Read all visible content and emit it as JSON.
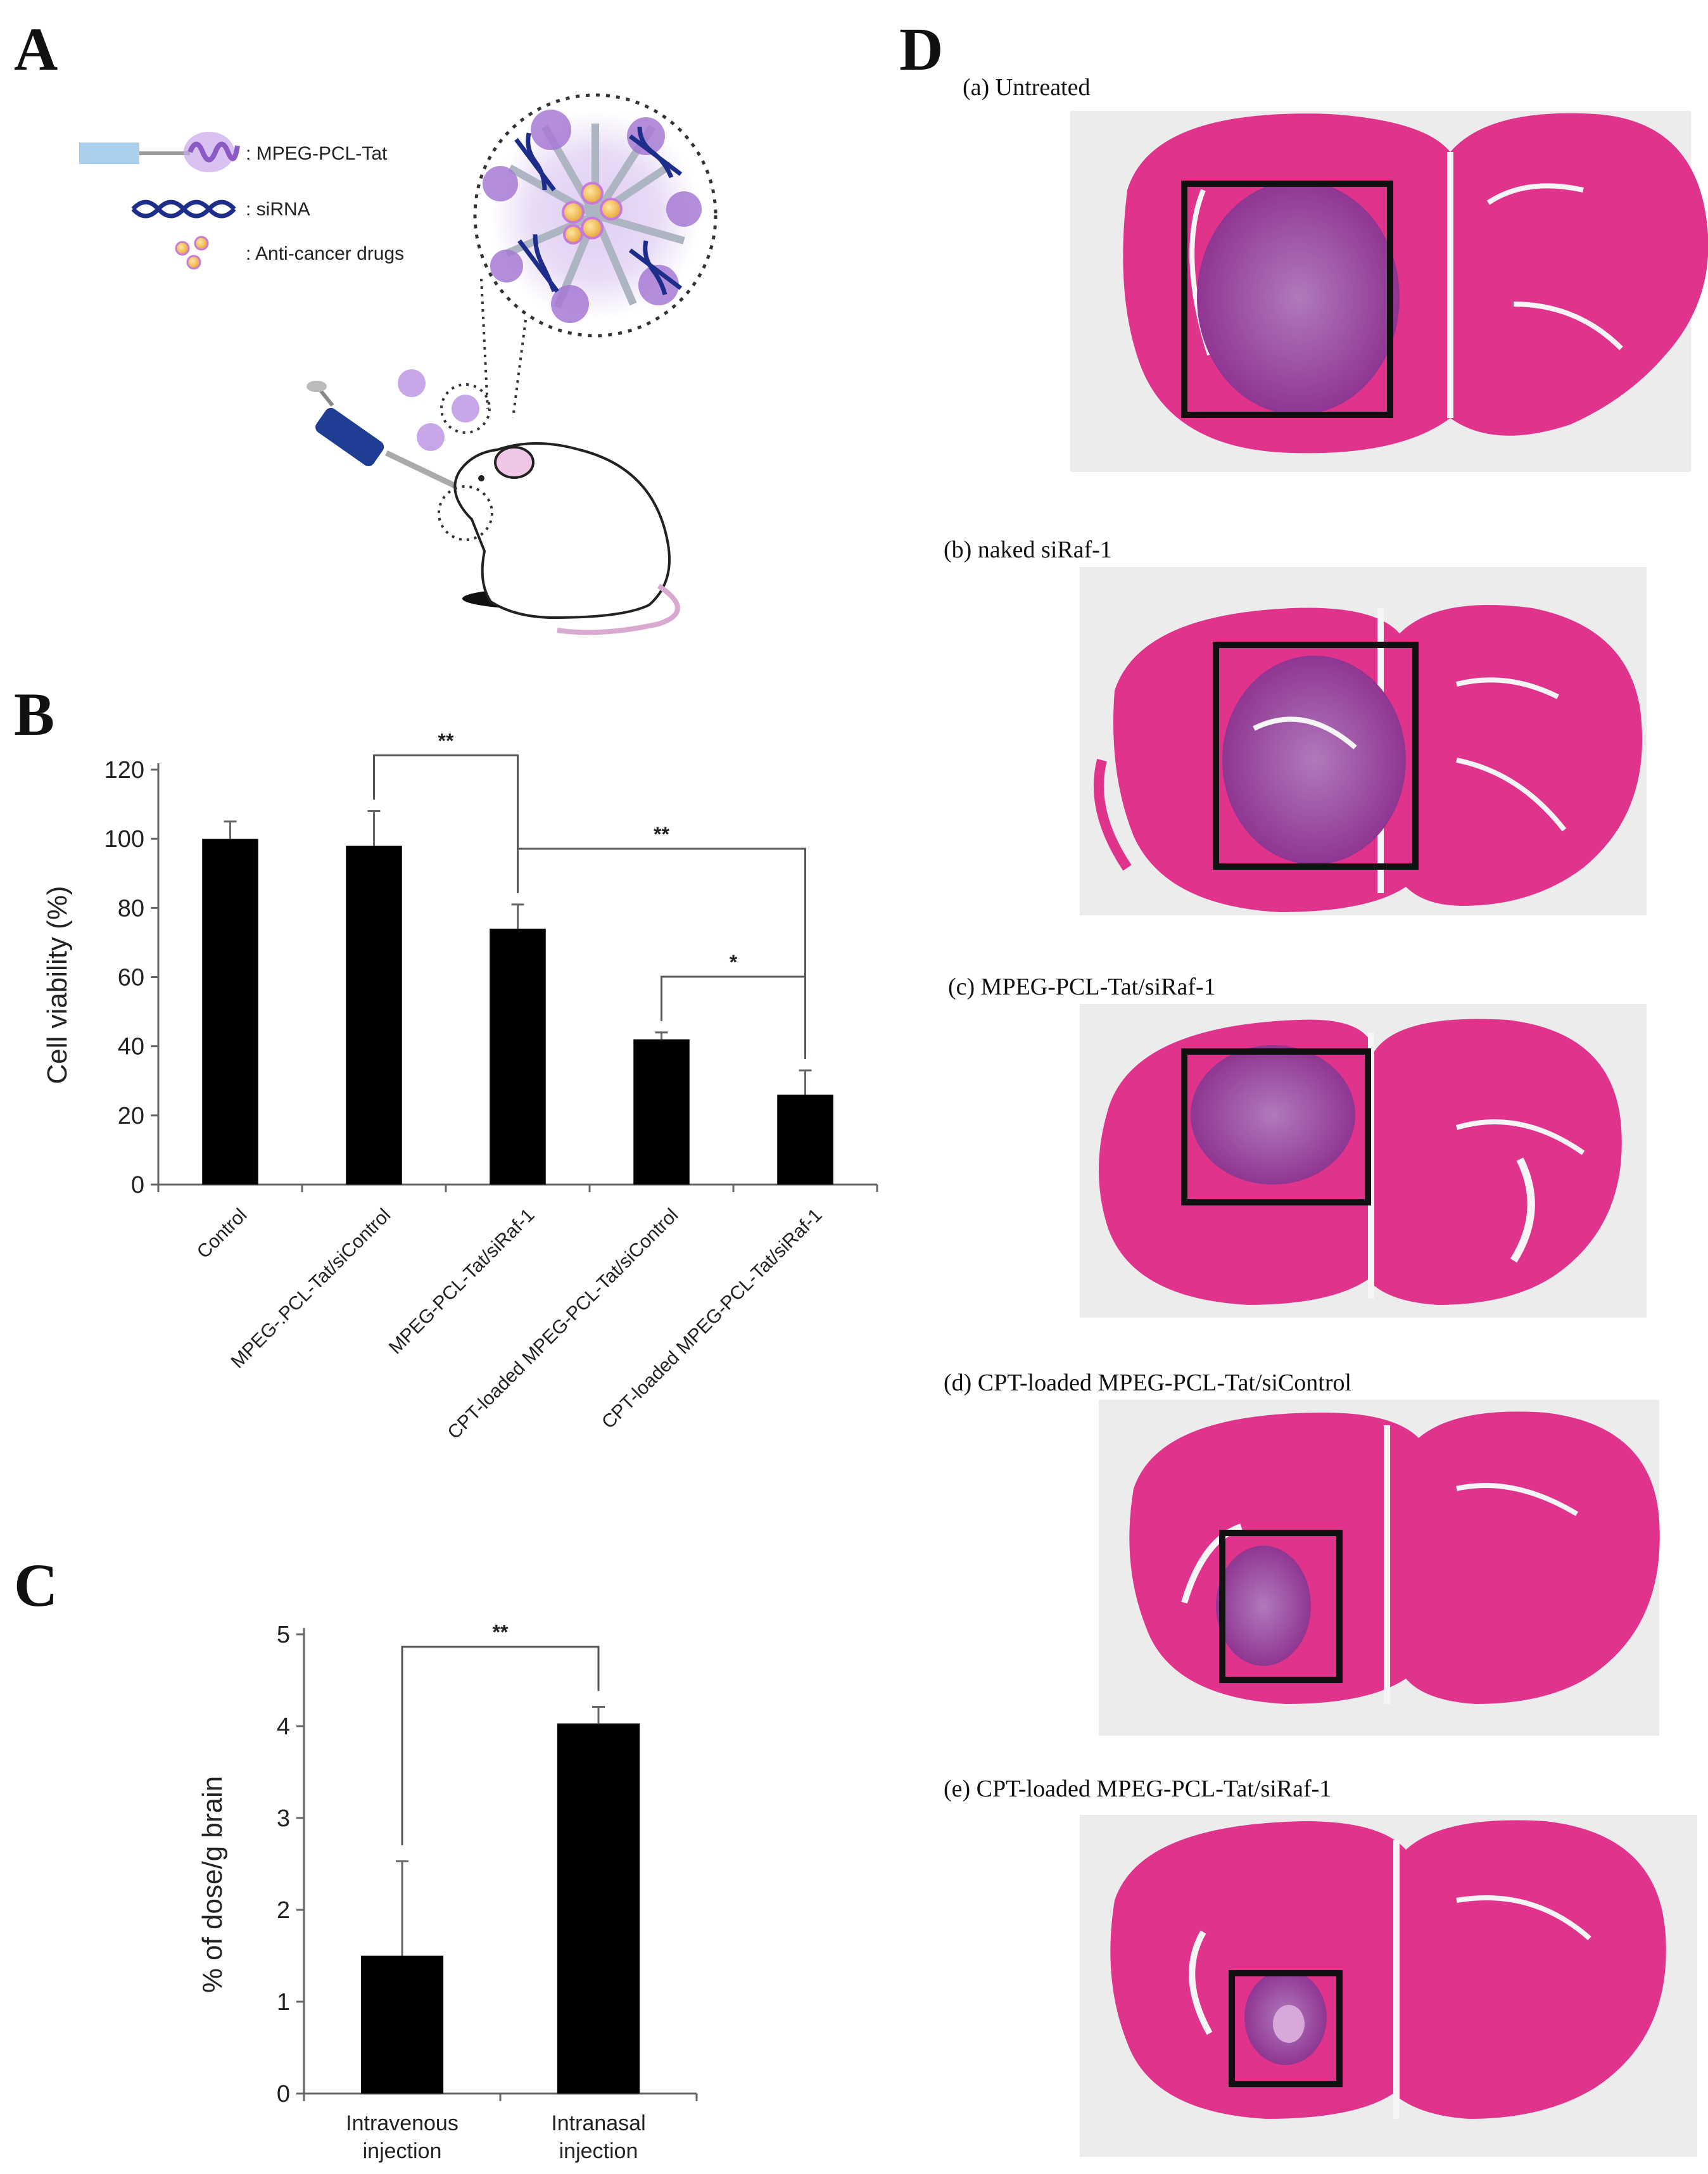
{
  "panels": {
    "a": "A",
    "b": "B",
    "c": "C",
    "d": "D"
  },
  "schematic": {
    "legend": [
      {
        "label": ": MPEG-PCL-Tat",
        "icon": "polymer-icon"
      },
      {
        "label": ": siRNA",
        "icon": "dna-helix-icon"
      },
      {
        "label": ": Anti-cancer drugs",
        "icon": "drug-particles-icon"
      }
    ],
    "colors": {
      "polymer": "#9aa9d8",
      "purple": "#a67ad4",
      "dna": "#1d2d8a",
      "drug": "#f2c24a",
      "syringe": "#1f3e93"
    }
  },
  "chart_data": [
    {
      "type": "bar",
      "panel": "B",
      "categories": [
        "Control",
        "MPEG-.PCL-Tat/siControl",
        "MPEG-PCL-Tat/siRaf-1",
        "CPT-loaded MPEG-PCL-Tat/siControl",
        "CPT-loaded MPEG-PCL-Tat/siRaf-1"
      ],
      "values": [
        100,
        98,
        74,
        42,
        26
      ],
      "errors": [
        5,
        10,
        7,
        2,
        7
      ],
      "ylabel": "Cell viability (%)",
      "ylim": [
        0,
        120
      ],
      "yticks": [
        0,
        20,
        40,
        60,
        80,
        100,
        120
      ],
      "grid": false,
      "bar_color": "#000000",
      "significance": [
        {
          "from": 1,
          "to": 2,
          "label": "**"
        },
        {
          "from": 2,
          "to": 4,
          "label": "**"
        },
        {
          "from": 3,
          "to": 4,
          "label": "*"
        }
      ]
    },
    {
      "type": "bar",
      "panel": "C",
      "categories": [
        [
          "Intravenous",
          "injection"
        ],
        [
          "Intranasal",
          "injection"
        ]
      ],
      "values": [
        1.5,
        4.03
      ],
      "errors": [
        1.03,
        0.18
      ],
      "ylabel": "% of dose/g brain",
      "ylim": [
        0,
        5
      ],
      "yticks": [
        0,
        1,
        2,
        3,
        4,
        5
      ],
      "grid": false,
      "bar_color": "#000000",
      "significance": [
        {
          "from": 0,
          "to": 1,
          "label": "**"
        }
      ]
    }
  ],
  "histology": [
    {
      "label": "(a) Untreated"
    },
    {
      "label": "(b) naked siRaf-1"
    },
    {
      "label": "(c) MPEG-PCL-Tat/siRaf-1"
    },
    {
      "label": "(d) CPT-loaded MPEG-PCL-Tat/siControl"
    },
    {
      "label": "(e) CPT-loaded MPEG-PCL-Tat/siRaf-1"
    }
  ],
  "colors": {
    "tissue": "#e0348c",
    "tumor": "#9c3d9c",
    "slide": "#ececec"
  }
}
